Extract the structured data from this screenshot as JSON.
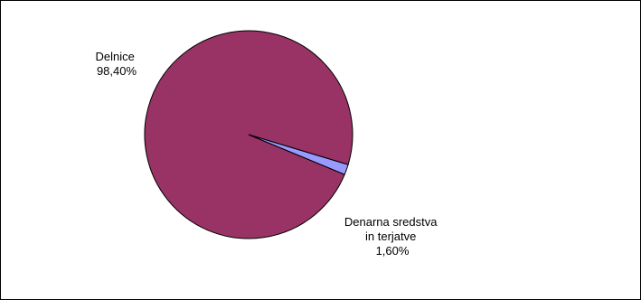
{
  "chart_data": {
    "type": "pie",
    "title": "",
    "slices": [
      {
        "name": "Delnice",
        "value": 98.4,
        "label_lines": [
          "Delnice",
          "98,40%"
        ],
        "color": "#993366"
      },
      {
        "name": "Denarna sredstva in terjatve",
        "value": 1.6,
        "label_lines": [
          "Denarna sredstva",
          "in terjatve",
          "1,60%"
        ],
        "color": "#9999FF"
      }
    ],
    "legend": "none"
  }
}
